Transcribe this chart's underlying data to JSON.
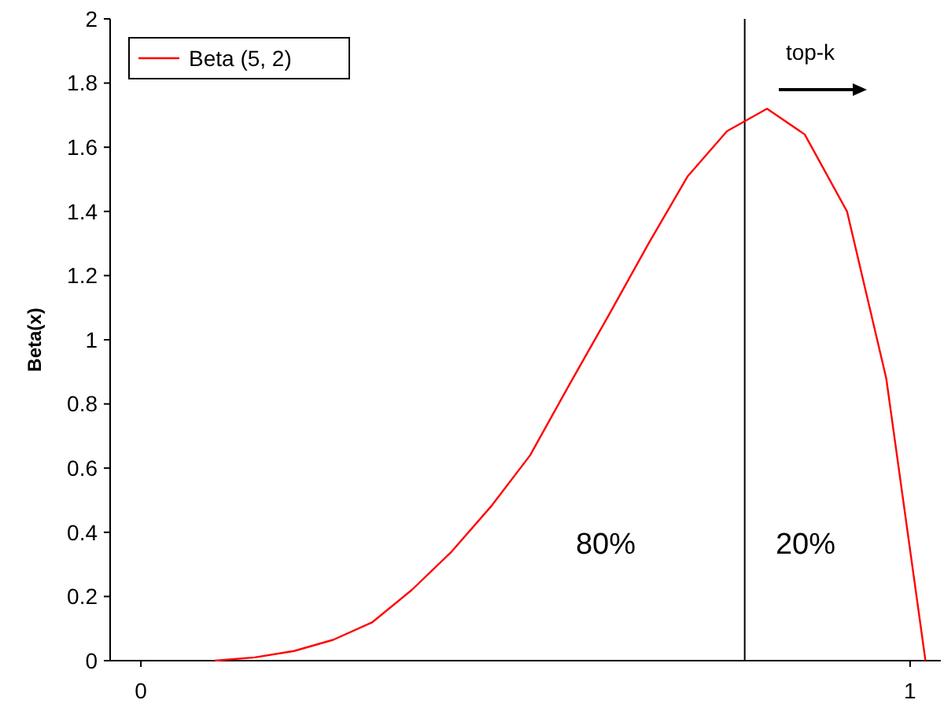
{
  "chart_data": {
    "type": "line",
    "ylabel": "Beta(x)",
    "xlim": [
      -0.04,
      1.04
    ],
    "ylim": [
      0,
      2
    ],
    "xticks": [
      0,
      1
    ],
    "yticks": [
      0,
      0.2,
      0.4,
      0.6,
      0.8,
      1,
      1.2,
      1.4,
      1.6,
      1.8,
      2
    ],
    "series": [
      {
        "name": "Beta (5, 2)",
        "color": "#ff0000",
        "x": [
          0.096,
          0.148,
          0.199,
          0.25,
          0.301,
          0.352,
          0.404,
          0.455,
          0.506,
          0.557,
          0.609,
          0.66,
          0.711,
          0.762,
          0.814,
          0.863,
          0.918,
          0.969,
          1.02
        ],
        "values": [
          0,
          0.01,
          0.03,
          0.065,
          0.12,
          0.22,
          0.34,
          0.48,
          0.64,
          0.86,
          1.08,
          1.3,
          1.51,
          1.65,
          1.72,
          1.64,
          1.4,
          0.88,
          0
        ]
      }
    ],
    "ref_lines": [
      {
        "axis": "x",
        "value": 0.785,
        "color": "#000000"
      }
    ],
    "annotations": [
      "80%",
      "20%",
      "top-k"
    ],
    "legend": "top left",
    "marker": "none",
    "line_style": "solid",
    "grid": false
  }
}
